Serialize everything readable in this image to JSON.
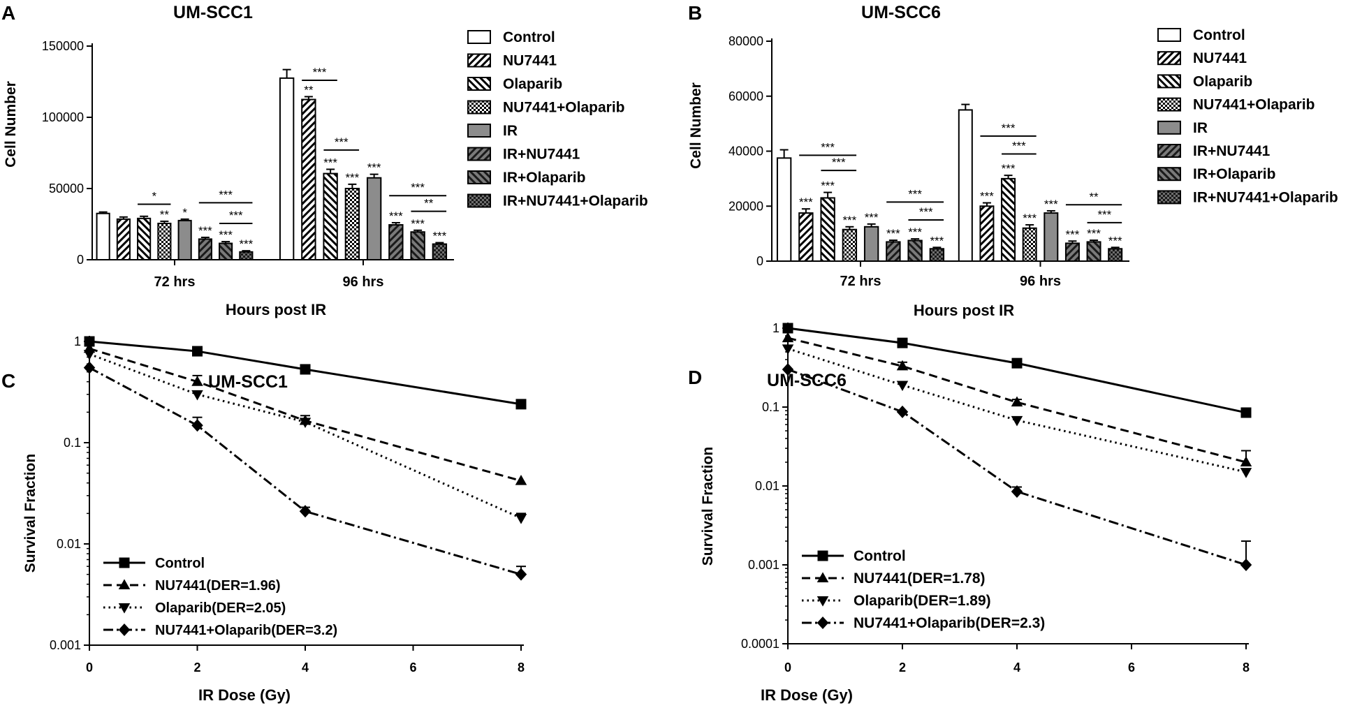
{
  "figure": {
    "colors": {
      "ink": "#000000",
      "bar_fill": "#ffffff",
      "solid_fill": "#8c8c8c",
      "background": "#ffffff"
    }
  },
  "chart_data": [
    {
      "panel": "A",
      "type": "bar",
      "title": "UM-SCC1",
      "xlabel": "Hours post IR",
      "ylabel": "Cell Number",
      "ylim": [
        0,
        150000
      ],
      "yticks": [
        0,
        50000,
        100000,
        150000
      ],
      "ytick_labels": [
        "0",
        "50000",
        "100000",
        "150000"
      ],
      "categories": [
        "72 hrs",
        "96 hrs"
      ],
      "series": [
        {
          "name": "Control",
          "pattern": "open",
          "values": [
            32500,
            127500
          ],
          "errors": [
            1000,
            6000
          ],
          "stars": [
            "",
            ""
          ]
        },
        {
          "name": "NU7441",
          "pattern": "diag-dense",
          "values": [
            28500,
            112500
          ],
          "errors": [
            1500,
            2000
          ],
          "stars": [
            "",
            "**"
          ]
        },
        {
          "name": "Olaparib",
          "pattern": "antidiag",
          "values": [
            29000,
            60500
          ],
          "errors": [
            1500,
            3000
          ],
          "stars": [
            "",
            "***"
          ]
        },
        {
          "name": "NU7441+Olaparib",
          "pattern": "checker",
          "values": [
            25500,
            50000
          ],
          "errors": [
            1500,
            3000
          ],
          "stars": [
            "**",
            "***"
          ]
        },
        {
          "name": "IR",
          "pattern": "solid",
          "values": [
            27500,
            57500
          ],
          "errors": [
            1000,
            2500
          ],
          "stars": [
            "*",
            "***"
          ]
        },
        {
          "name": "IR+NU7441",
          "pattern": "dark-diag",
          "values": [
            14500,
            24500
          ],
          "errors": [
            1200,
            1500
          ],
          "stars": [
            "***",
            "***"
          ]
        },
        {
          "name": "IR+Olaparib",
          "pattern": "dark-antidiag",
          "values": [
            11500,
            19500
          ],
          "errors": [
            1200,
            1200
          ],
          "stars": [
            "***",
            "***"
          ]
        },
        {
          "name": "IR+NU7441+Olaparib",
          "pattern": "dark-checker",
          "values": [
            5500,
            11000
          ],
          "errors": [
            800,
            1000
          ],
          "stars": [
            "***",
            "***"
          ]
        }
      ],
      "brackets": [
        {
          "category": 0,
          "from": 2,
          "to": 3,
          "label": "*",
          "level": 39000
        },
        {
          "category": 0,
          "from": 5,
          "to": 7,
          "label": "***",
          "level": 40000
        },
        {
          "category": 0,
          "from": 6,
          "to": 7,
          "label": "***",
          "level": 25500
        },
        {
          "category": 1,
          "from": 1,
          "to": 2,
          "label": "***",
          "level": 126000
        },
        {
          "category": 1,
          "from": 2,
          "to": 3,
          "label": "***",
          "level": 77000
        },
        {
          "category": 1,
          "from": 5,
          "to": 7,
          "label": "***",
          "level": 45000
        },
        {
          "category": 1,
          "from": 6,
          "to": 7,
          "label": "**",
          "level": 34000
        }
      ],
      "legend": [
        "Control",
        "NU7441",
        "Olaparib",
        "NU7441+Olaparib",
        "IR",
        "IR+NU7441",
        "IR+Olaparib",
        "IR+NU7441+Olaparib"
      ]
    },
    {
      "panel": "B",
      "type": "bar",
      "title": "UM-SCC6",
      "xlabel": "Hours post IR",
      "ylabel": "Cell Number",
      "ylim": [
        0,
        80000
      ],
      "yticks": [
        0,
        20000,
        40000,
        60000,
        80000
      ],
      "ytick_labels": [
        "0",
        "20000",
        "40000",
        "60000",
        "80000"
      ],
      "categories": [
        "72 hrs",
        "96 hrs"
      ],
      "series": [
        {
          "name": "Control",
          "pattern": "open",
          "values": [
            37500,
            55000
          ],
          "errors": [
            3000,
            2000
          ],
          "stars": [
            "",
            ""
          ]
        },
        {
          "name": "NU7441",
          "pattern": "diag-dense",
          "values": [
            17500,
            20000
          ],
          "errors": [
            1500,
            1200
          ],
          "stars": [
            "***",
            "***"
          ]
        },
        {
          "name": "Olaparib",
          "pattern": "antidiag",
          "values": [
            23000,
            30000
          ],
          "errors": [
            2000,
            1200
          ],
          "stars": [
            "***",
            "***"
          ]
        },
        {
          "name": "NU7441+Olaparib",
          "pattern": "checker",
          "values": [
            11500,
            12000
          ],
          "errors": [
            1000,
            1200
          ],
          "stars": [
            "***",
            "***"
          ]
        },
        {
          "name": "IR",
          "pattern": "solid",
          "values": [
            12500,
            17500
          ],
          "errors": [
            1000,
            800
          ],
          "stars": [
            "***",
            "***"
          ]
        },
        {
          "name": "IR+NU7441",
          "pattern": "dark-diag",
          "values": [
            7000,
            6500
          ],
          "errors": [
            600,
            800
          ],
          "stars": [
            "***",
            "***"
          ]
        },
        {
          "name": "IR+Olaparib",
          "pattern": "dark-antidiag",
          "values": [
            7500,
            7000
          ],
          "errors": [
            600,
            600
          ],
          "stars": [
            "***",
            "***"
          ]
        },
        {
          "name": "IR+NU7441+Olaparib",
          "pattern": "dark-checker",
          "values": [
            4500,
            4500
          ],
          "errors": [
            500,
            500
          ],
          "stars": [
            "***",
            "***"
          ]
        }
      ],
      "brackets": [
        {
          "category": 0,
          "from": 1,
          "to": 3,
          "label": "***",
          "level": 38500
        },
        {
          "category": 0,
          "from": 2,
          "to": 3,
          "label": "***",
          "level": 33000
        },
        {
          "category": 0,
          "from": 5,
          "to": 7,
          "label": "***",
          "level": 21500
        },
        {
          "category": 0,
          "from": 6,
          "to": 7,
          "label": "***",
          "level": 15000
        },
        {
          "category": 1,
          "from": 1,
          "to": 3,
          "label": "***",
          "level": 45500
        },
        {
          "category": 1,
          "from": 2,
          "to": 3,
          "label": "***",
          "level": 39000
        },
        {
          "category": 1,
          "from": 5,
          "to": 7,
          "label": "**",
          "level": 20500
        },
        {
          "category": 1,
          "from": 6,
          "to": 7,
          "label": "***",
          "level": 14000
        }
      ],
      "legend": [
        "Control",
        "NU7441",
        "Olaparib",
        "NU7441+Olaparib",
        "IR",
        "IR+NU7441",
        "IR+Olaparib",
        "IR+NU7441+Olaparib"
      ]
    },
    {
      "panel": "C",
      "type": "line",
      "yscale": "log",
      "title": "UM-SCC1",
      "xlabel": "IR Dose (Gy)",
      "ylabel": "Survival Fraction",
      "xlim": [
        0,
        8
      ],
      "xticks": [
        0,
        2,
        4,
        6,
        8
      ],
      "xtick_labels": [
        "0",
        "2",
        "4",
        "6",
        "8"
      ],
      "ylim": [
        0.001,
        1
      ],
      "yticks": [
        0.001,
        0.01,
        0.1,
        1
      ],
      "ytick_labels": [
        "0.001",
        "0.01",
        "0.1",
        "1"
      ],
      "x": [
        0,
        2,
        4,
        8
      ],
      "series": [
        {
          "name": "Control",
          "legend": "Control",
          "marker": "square",
          "dash": "solid",
          "values": [
            1.0,
            0.8,
            0.53,
            0.24
          ],
          "errors": [
            0,
            0,
            0,
            0
          ]
        },
        {
          "name": "NU7441",
          "legend": "NU7441(DER=1.96)",
          "marker": "triangle-up",
          "dash": "dashed",
          "values": [
            0.85,
            0.4,
            0.165,
            0.042
          ],
          "errors": [
            0,
            0.06,
            0.02,
            0
          ]
        },
        {
          "name": "Olaparib",
          "legend": "Olaparib(DER=2.05)",
          "marker": "triangle-down",
          "dash": "dotted",
          "values": [
            0.75,
            0.3,
            0.16,
            0.018
          ],
          "errors": [
            0,
            0,
            0,
            0.002
          ]
        },
        {
          "name": "NU7441+Olaparib",
          "legend": "NU7441+Olaparib(DER=3.2)",
          "marker": "diamond",
          "dash": "dashdot",
          "values": [
            0.55,
            0.148,
            0.021,
            0.005
          ],
          "errors": [
            0,
            0.03,
            0.002,
            0.001
          ]
        }
      ]
    },
    {
      "panel": "D",
      "type": "line",
      "yscale": "log",
      "title": "UM-SCC6",
      "xlabel": "IR Dose (Gy)",
      "ylabel": "Survival Fraction",
      "xlim": [
        0,
        8
      ],
      "xticks": [
        0,
        2,
        4,
        6,
        8
      ],
      "xtick_labels": [
        "0",
        "2",
        "4",
        "6",
        "8"
      ],
      "ylim": [
        0.0001,
        1
      ],
      "yticks": [
        0.0001,
        0.001,
        0.01,
        0.1,
        1
      ],
      "ytick_labels": [
        "0.0001",
        "0.001",
        "0.01",
        "0.1",
        "1"
      ],
      "x": [
        0,
        2,
        4,
        8
      ],
      "series": [
        {
          "name": "Control",
          "legend": "Control",
          "marker": "square",
          "dash": "solid",
          "values": [
            1.0,
            0.65,
            0.36,
            0.085
          ],
          "errors": [
            0,
            0,
            0,
            0
          ]
        },
        {
          "name": "NU7441",
          "legend": "NU7441(DER=1.78)",
          "marker": "triangle-up",
          "dash": "dashed",
          "values": [
            0.75,
            0.33,
            0.115,
            0.02
          ],
          "errors": [
            0,
            0.04,
            0.01,
            0.008
          ]
        },
        {
          "name": "Olaparib",
          "legend": "Olaparib(DER=1.89)",
          "marker": "triangle-down",
          "dash": "dotted",
          "values": [
            0.55,
            0.19,
            0.068,
            0.015
          ],
          "errors": [
            0,
            0,
            0,
            0
          ]
        },
        {
          "name": "NU7441+Olaparib",
          "legend": "NU7441+Olaparib(DER=2.3)",
          "marker": "diamond",
          "dash": "dashdot",
          "values": [
            0.3,
            0.087,
            0.0085,
            0.001
          ],
          "errors": [
            0,
            0,
            0.0012,
            0.001
          ]
        }
      ]
    }
  ]
}
